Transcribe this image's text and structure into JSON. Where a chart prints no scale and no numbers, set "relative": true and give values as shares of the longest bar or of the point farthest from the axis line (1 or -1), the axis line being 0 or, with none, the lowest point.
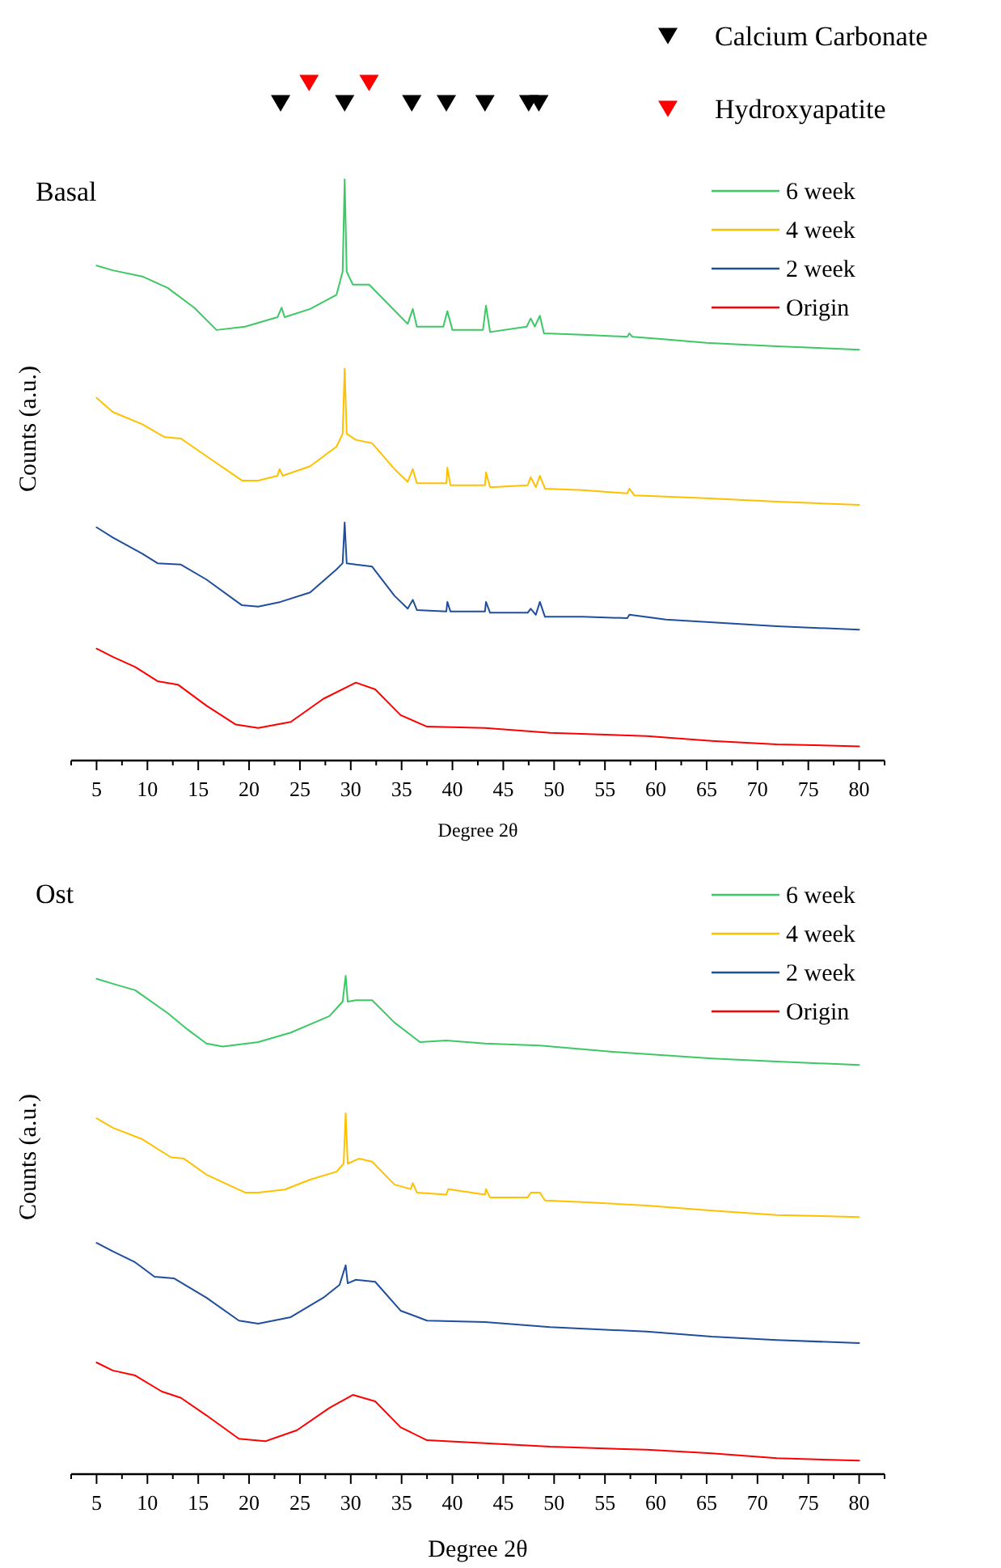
{
  "chart_data": [
    {
      "type": "line",
      "title": "Basal",
      "xlabel": "Degree 2θ",
      "ylabel": "Counts (a.u.)",
      "relative": true,
      "legend": "top right",
      "xlim": [
        2.5,
        82.5
      ],
      "xticks": [
        {
          "value": 2.5,
          "label": null
        },
        5,
        {
          "value": 7.5,
          "label": null
        },
        10,
        {
          "value": 12.5,
          "label": null
        },
        15,
        {
          "value": 17.5,
          "label": null
        },
        20,
        {
          "value": 22.5,
          "label": null
        },
        25,
        {
          "value": 27.5,
          "label": null
        },
        30,
        {
          "value": 32.5,
          "label": null
        },
        35,
        {
          "value": 37.5,
          "label": null
        },
        40,
        {
          "value": 42.5,
          "label": null
        },
        45,
        {
          "value": 47.5,
          "label": null
        },
        50,
        {
          "value": 52.5,
          "label": null
        },
        55,
        {
          "value": 57.5,
          "label": null
        },
        60,
        {
          "value": 62.5,
          "label": null
        },
        65,
        {
          "value": 67.5,
          "label": null
        },
        70,
        {
          "value": 72.5,
          "label": null
        },
        75,
        {
          "value": 77.5,
          "label": null
        },
        80,
        {
          "value": 82.5,
          "label": null
        }
      ],
      "series": [
        {
          "name": "Calcium Carbonate",
          "type": "scatter",
          "marker": "triangle",
          "color": "#000000",
          "x": [
            23.1,
            29.4,
            36.0,
            39.4,
            43.2,
            47.5,
            48.5
          ],
          "values": [
            0.97,
            0.97,
            0.97,
            0.97,
            0.97,
            0.97,
            0.97
          ]
        },
        {
          "name": "Hydroxyapatite",
          "type": "scatter",
          "marker": "triangle",
          "color": "#ff0000",
          "x": [
            25.9,
            31.8
          ],
          "values": [
            1,
            1
          ]
        },
        {
          "name": "6 week",
          "color": "#3cc864",
          "x": [
            5,
            6.6,
            9.5,
            12,
            14.6,
            16.8,
            19.6,
            22.8,
            23.2,
            23.5,
            26,
            28.6,
            29.2,
            29.4,
            29.6,
            30.2,
            31.8,
            33.7,
            35.6,
            36.1,
            36.5,
            39.1,
            39.5,
            40,
            43.0,
            43.3,
            43.7,
            47.3,
            47.7,
            48.1,
            48.6,
            49,
            52.8,
            57.2,
            57.4,
            57.7,
            61,
            65,
            71.9,
            80
          ],
          "values": [
            0.73,
            0.723,
            0.714,
            0.697,
            0.668,
            0.635,
            0.64,
            0.654,
            0.668,
            0.654,
            0.666,
            0.687,
            0.721,
            0.857,
            0.721,
            0.702,
            0.702,
            0.673,
            0.644,
            0.666,
            0.64,
            0.64,
            0.663,
            0.635,
            0.635,
            0.671,
            0.632,
            0.64,
            0.652,
            0.64,
            0.656,
            0.63,
            0.628,
            0.625,
            0.63,
            0.625,
            0.621,
            0.616,
            0.611,
            0.606
          ]
        },
        {
          "name": "4 week",
          "color": "#ffc000",
          "x": [
            5,
            6.6,
            9.5,
            11.7,
            13.3,
            15.8,
            19.3,
            20.9,
            22.8,
            23,
            23.3,
            26,
            28.6,
            29.2,
            29.4,
            29.6,
            30.5,
            32.1,
            34.3,
            35.6,
            36.1,
            36.5,
            39.4,
            39.5,
            39.8,
            43.2,
            43.3,
            43.7,
            47.4,
            47.7,
            48.2,
            48.6,
            49.1,
            52.8,
            57.2,
            57.4,
            57.9,
            64.9,
            71.9,
            80
          ],
          "values": [
            0.535,
            0.514,
            0.496,
            0.477,
            0.475,
            0.449,
            0.413,
            0.413,
            0.42,
            0.43,
            0.42,
            0.434,
            0.463,
            0.482,
            0.578,
            0.482,
            0.473,
            0.468,
            0.43,
            0.411,
            0.43,
            0.409,
            0.409,
            0.432,
            0.406,
            0.406,
            0.425,
            0.403,
            0.406,
            0.418,
            0.403,
            0.42,
            0.401,
            0.399,
            0.394,
            0.401,
            0.391,
            0.387,
            0.382,
            0.377
          ]
        },
        {
          "name": "2 week",
          "color": "#1f4e9c",
          "x": [
            5,
            6.6,
            9.5,
            11,
            13.3,
            15.8,
            19.3,
            20.9,
            23.1,
            26,
            28.6,
            29.2,
            29.4,
            29.6,
            30.5,
            32.1,
            34.3,
            35.6,
            36.1,
            36.5,
            39.4,
            39.5,
            39.8,
            43.2,
            43.3,
            43.7,
            47.4,
            47.7,
            48.2,
            48.6,
            49.1,
            52.8,
            57.2,
            57.4,
            61,
            71.9,
            80
          ],
          "values": [
            0.344,
            0.329,
            0.305,
            0.291,
            0.289,
            0.267,
            0.229,
            0.227,
            0.234,
            0.248,
            0.282,
            0.291,
            0.351,
            0.291,
            0.289,
            0.286,
            0.243,
            0.224,
            0.237,
            0.222,
            0.22,
            0.234,
            0.22,
            0.22,
            0.234,
            0.218,
            0.218,
            0.224,
            0.215,
            0.234,
            0.212,
            0.212,
            0.21,
            0.215,
            0.208,
            0.198,
            0.193
          ]
        },
        {
          "name": "Origin",
          "color": "#ff0000",
          "x": [
            5,
            6.6,
            8.8,
            11,
            13,
            15.8,
            18.7,
            20.9,
            24.1,
            27.3,
            30.5,
            32.4,
            34.9,
            37.5,
            43.2,
            49.6,
            59.1,
            65.5,
            71.9,
            80
          ],
          "values": [
            0.165,
            0.153,
            0.138,
            0.117,
            0.112,
            0.081,
            0.053,
            0.048,
            0.057,
            0.091,
            0.115,
            0.105,
            0.067,
            0.05,
            0.048,
            0.041,
            0.036,
            0.029,
            0.024,
            0.021
          ]
        }
      ]
    },
    {
      "type": "line",
      "title": "Ost",
      "xlabel": "Degree 2θ",
      "ylabel": "Counts (a.u.)",
      "relative": true,
      "legend": "top right",
      "xlim": [
        2.5,
        82.5
      ],
      "xticks": [
        {
          "value": 2.5,
          "label": null
        },
        5,
        {
          "value": 7.5,
          "label": null
        },
        10,
        {
          "value": 12.5,
          "label": null
        },
        15,
        {
          "value": 17.5,
          "label": null
        },
        20,
        {
          "value": 22.5,
          "label": null
        },
        25,
        {
          "value": 27.5,
          "label": null
        },
        30,
        {
          "value": 32.5,
          "label": null
        },
        35,
        {
          "value": 37.5,
          "label": null
        },
        40,
        {
          "value": 42.5,
          "label": null
        },
        45,
        {
          "value": 47.5,
          "label": null
        },
        50,
        {
          "value": 52.5,
          "label": null
        },
        55,
        {
          "value": 57.5,
          "label": null
        },
        60,
        {
          "value": 62.5,
          "label": null
        },
        65,
        {
          "value": 67.5,
          "label": null
        },
        70,
        {
          "value": 72.5,
          "label": null
        },
        75,
        {
          "value": 77.5,
          "label": null
        },
        80,
        {
          "value": 82.5,
          "label": null
        }
      ],
      "series": [
        {
          "name": "6 week",
          "color": "#3cc864",
          "x": [
            5,
            6.6,
            8.8,
            12,
            13.9,
            15.8,
            17.4,
            20.9,
            24.1,
            27.9,
            29.2,
            29.5,
            29.7,
            30.5,
            32.1,
            34.3,
            36.8,
            39.4,
            43.2,
            48.6,
            56,
            65.5,
            71.9,
            80
          ],
          "values": [
            0.994,
            0.984,
            0.971,
            0.925,
            0.893,
            0.864,
            0.858,
            0.867,
            0.886,
            0.919,
            0.948,
            1.0,
            0.948,
            0.951,
            0.951,
            0.906,
            0.867,
            0.87,
            0.864,
            0.86,
            0.847,
            0.834,
            0.828,
            0.821
          ]
        },
        {
          "name": "4 week",
          "color": "#ffc000",
          "x": [
            5,
            6.6,
            9.5,
            12.3,
            13.6,
            15.8,
            19.6,
            20.9,
            23.5,
            26,
            28.6,
            29.3,
            29.5,
            29.7,
            30.8,
            32.1,
            34.3,
            35.9,
            36.1,
            36.5,
            39.4,
            39.6,
            43.2,
            43.3,
            43.7,
            47.4,
            47.7,
            48.6,
            49.1,
            52.8,
            59.1,
            65.5,
            71.9,
            80
          ],
          "values": [
            0.714,
            0.695,
            0.672,
            0.636,
            0.633,
            0.601,
            0.565,
            0.565,
            0.571,
            0.591,
            0.607,
            0.623,
            0.724,
            0.623,
            0.633,
            0.627,
            0.581,
            0.572,
            0.584,
            0.565,
            0.561,
            0.572,
            0.561,
            0.572,
            0.555,
            0.555,
            0.565,
            0.565,
            0.549,
            0.546,
            0.539,
            0.529,
            0.52,
            0.516
          ]
        },
        {
          "name": "2 week",
          "color": "#1f4e9c",
          "x": [
            5,
            6.6,
            8.8,
            10.7,
            12.6,
            15.8,
            19,
            20.9,
            24.1,
            27.3,
            28.9,
            29.5,
            29.7,
            30.5,
            32.4,
            34.9,
            37.5,
            43.2,
            49.6,
            59.1,
            65.5,
            71.9,
            80
          ],
          "values": [
            0.464,
            0.447,
            0.425,
            0.396,
            0.393,
            0.354,
            0.308,
            0.302,
            0.315,
            0.354,
            0.38,
            0.419,
            0.383,
            0.39,
            0.386,
            0.328,
            0.308,
            0.305,
            0.295,
            0.286,
            0.276,
            0.269,
            0.263
          ]
        },
        {
          "name": "Origin",
          "color": "#ff0000",
          "x": [
            5,
            6.6,
            8.8,
            11.4,
            13.3,
            15.8,
            19,
            21.6,
            24.7,
            27.9,
            30.2,
            32.4,
            34.9,
            37.5,
            43.2,
            49.6,
            59.1,
            65.5,
            71.9,
            80
          ],
          "values": [
            0.224,
            0.208,
            0.198,
            0.166,
            0.153,
            0.118,
            0.071,
            0.066,
            0.088,
            0.133,
            0.159,
            0.146,
            0.094,
            0.068,
            0.062,
            0.055,
            0.049,
            0.042,
            0.032,
            0.027
          ]
        }
      ]
    }
  ]
}
